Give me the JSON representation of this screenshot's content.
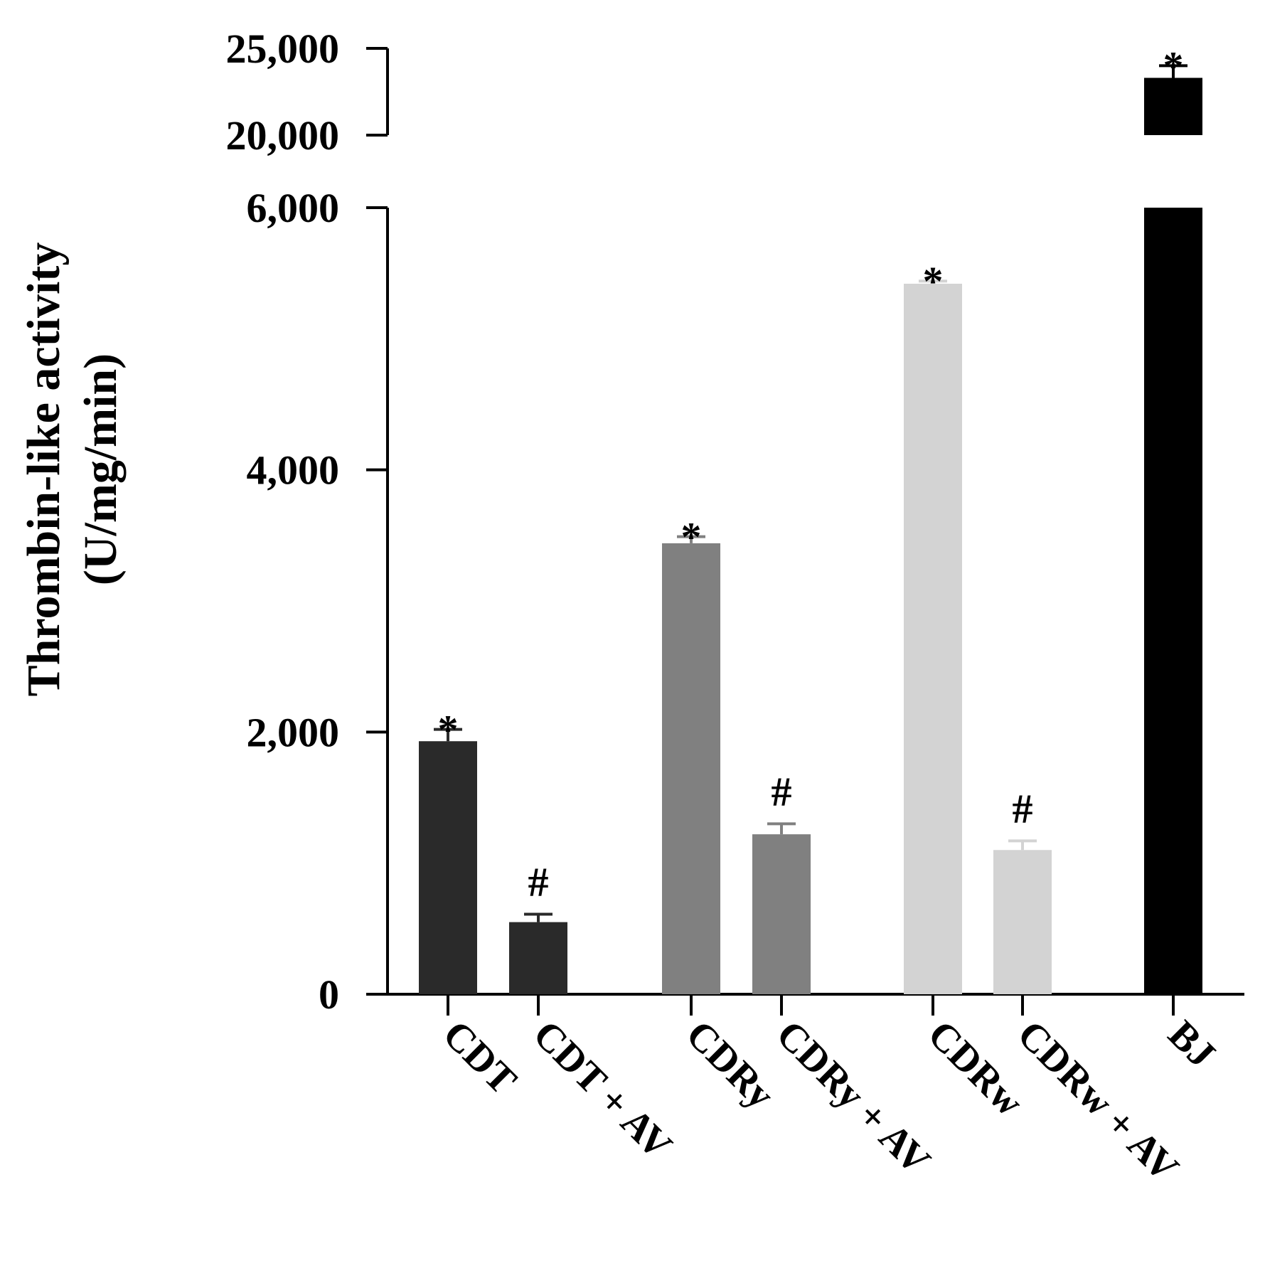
{
  "chart_data": {
    "type": "bar",
    "title": "",
    "ylabel_lines": [
      "Thrombin-like activity",
      "(U/mg/min)"
    ],
    "ylabel": "Thrombin-like activity (U/mg/min)",
    "xlabel": "",
    "categories": [
      "CDT",
      "CDT + AV",
      "CDRy",
      "CDRy + AV",
      "CDRw",
      "CDRw + AV",
      "BJ"
    ],
    "values": [
      1930,
      550,
      3440,
      1220,
      5420,
      1100,
      23300
    ],
    "errors": [
      90,
      60,
      50,
      80,
      20,
      70,
      700
    ],
    "annotations": [
      "*",
      "#",
      "*",
      "#",
      "*",
      "#",
      "*"
    ],
    "colors": [
      "#2a2a2a",
      "#2a2a2a",
      "#808080",
      "#808080",
      "#d3d3d3",
      "#d3d3d3",
      "#000000"
    ],
    "y_axis": {
      "broken": true,
      "lower_range": [
        0,
        6000
      ],
      "upper_range": [
        20000,
        25000
      ],
      "lower_ticks": [
        0,
        2000,
        4000,
        6000
      ],
      "lower_tick_labels": [
        "0",
        "2,000",
        "4,000",
        "6,000"
      ],
      "upper_ticks": [
        20000,
        25000
      ],
      "upper_tick_labels": [
        "20,000",
        "25,000"
      ]
    },
    "grid": false,
    "legend": "none"
  }
}
